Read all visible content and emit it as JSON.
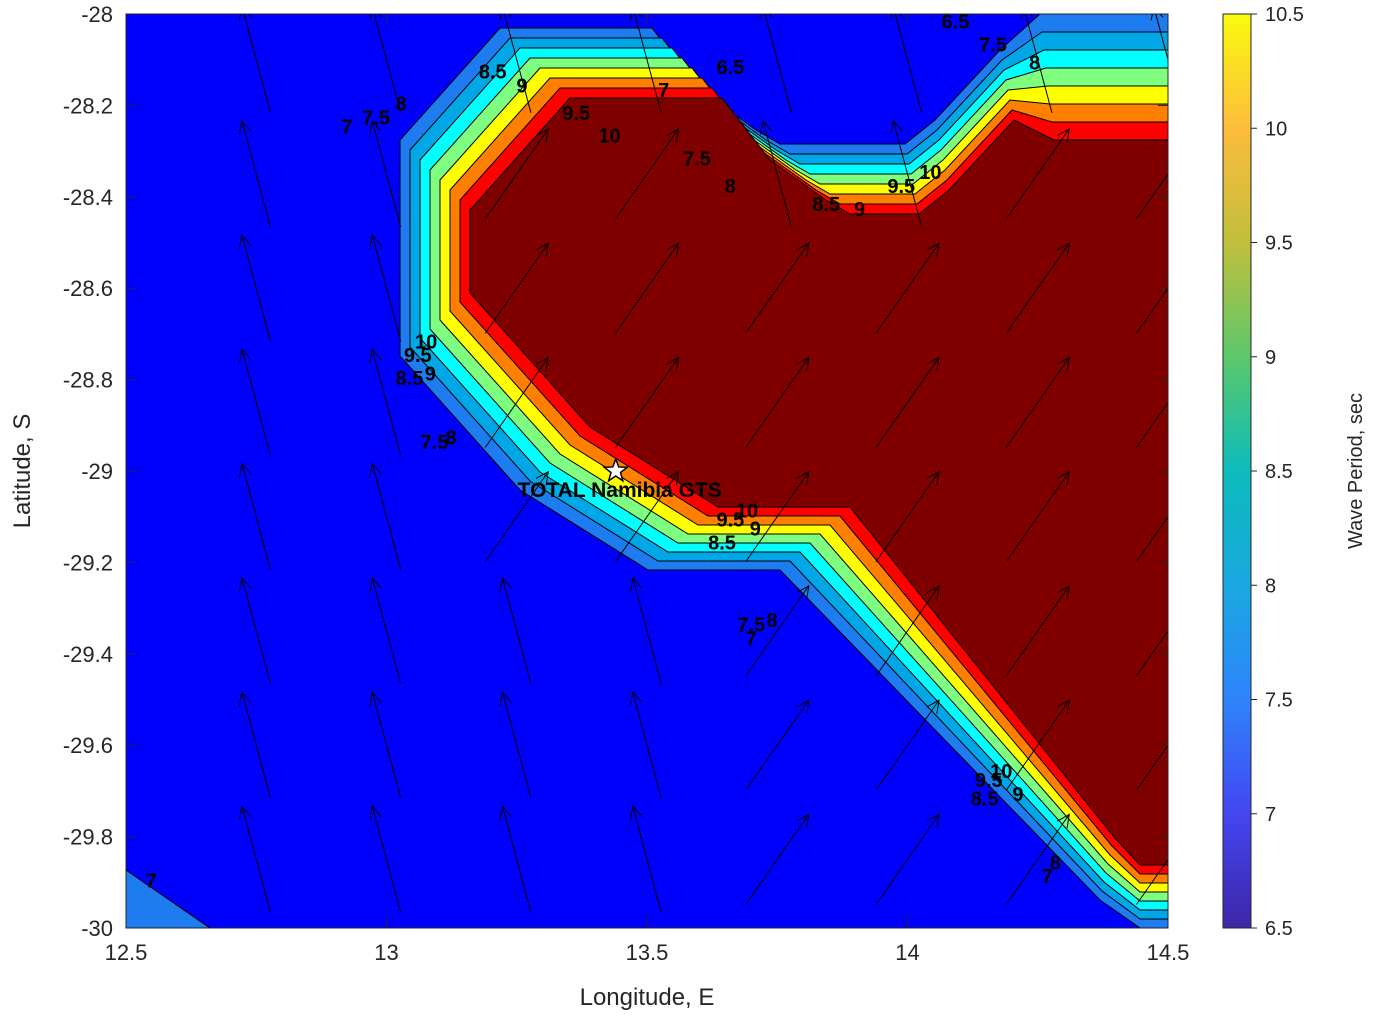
{
  "chart_data": {
    "type": "contour",
    "xlabel": "Longitude, E",
    "ylabel": "Latitude, S",
    "xlim": [
      12.5,
      14.5
    ],
    "ylim": [
      -30,
      -28
    ],
    "xticks": [
      12.5,
      13,
      13.5,
      14,
      14.5
    ],
    "xtick_labels": [
      "12.5",
      "13",
      "13.5",
      "14",
      "14.5"
    ],
    "yticks": [
      -28,
      -28.2,
      -28.4,
      -28.6,
      -28.8,
      -29,
      -29.2,
      -29.4,
      -29.6,
      -29.8,
      -30
    ],
    "ytick_labels": [
      "-28",
      "-28.2",
      "-28.4",
      "-28.6",
      "-28.8",
      "-29",
      "-29.2",
      "-29.4",
      "-29.6",
      "-29.8",
      "-30"
    ],
    "colorbar": {
      "label": "Wave Period, sec",
      "range": [
        6.5,
        10.5
      ],
      "ticks": [
        6.5,
        7,
        7.5,
        8,
        8.5,
        9,
        9.5,
        10,
        10.5
      ],
      "tick_labels": [
        "6.5",
        "7",
        "7.5",
        "8",
        "8.5",
        "9",
        "9.5",
        "10",
        "10.5"
      ]
    },
    "contour_levels": [
      6.5,
      7,
      7.5,
      8,
      8.5,
      9,
      9.5,
      10,
      10.5
    ],
    "level_colors": [
      "#0000ff",
      "#1c7cf0",
      "#00a7e6",
      "#00ffff",
      "#7fff7f",
      "#ffff00",
      "#ff8000",
      "#ff0000",
      "#800000"
    ],
    "region_max_period": 10.5,
    "background_period": 6.5,
    "contour_labels": [
      {
        "text": "7",
        "lon": 13.03,
        "lat": -28.25
      },
      {
        "text": "7.5",
        "lon": 13.1,
        "lat": -28.23
      },
      {
        "text": "8",
        "lon": 13.16,
        "lat": -28.2
      },
      {
        "text": "8.5",
        "lon": 13.38,
        "lat": -28.13
      },
      {
        "text": "9",
        "lon": 13.45,
        "lat": -28.16
      },
      {
        "text": "9.5",
        "lon": 13.58,
        "lat": -28.22
      },
      {
        "text": "10",
        "lon": 13.66,
        "lat": -28.27
      },
      {
        "text": "7",
        "lon": 13.79,
        "lat": -28.17
      },
      {
        "text": "6.5",
        "lon": 13.95,
        "lat": -28.12
      },
      {
        "text": "7.5",
        "lon": 13.87,
        "lat": -28.32
      },
      {
        "text": "8",
        "lon": 13.95,
        "lat": -28.38
      },
      {
        "text": "8.5",
        "lon": 14.18,
        "lat": -28.42
      },
      {
        "text": "9",
        "lon": 14.26,
        "lat": -28.43
      },
      {
        "text": "9.5",
        "lon": 14.36,
        "lat": -28.38
      },
      {
        "text": "10",
        "lon": 14.43,
        "lat": -28.35
      },
      {
        "text": "6.5",
        "lon": 14.49,
        "lat": -28.02
      },
      {
        "text": "7.5",
        "lon": 14.58,
        "lat": -28.07
      },
      {
        "text": "8",
        "lon": 14.68,
        "lat": -28.11
      },
      {
        "text": "10",
        "lon": 13.22,
        "lat": -28.72
      },
      {
        "text": "9.5",
        "lon": 13.2,
        "lat": -28.75
      },
      {
        "text": "9",
        "lon": 13.23,
        "lat": -28.79
      },
      {
        "text": "8.5",
        "lon": 13.18,
        "lat": -28.8
      },
      {
        "text": "8",
        "lon": 13.28,
        "lat": -28.93
      },
      {
        "text": "7.5",
        "lon": 13.24,
        "lat": -28.94
      },
      {
        "text": "10",
        "lon": 13.99,
        "lat": -29.09
      },
      {
        "text": "9.5",
        "lon": 13.95,
        "lat": -29.11
      },
      {
        "text": "9",
        "lon": 14.01,
        "lat": -29.13
      },
      {
        "text": "8.5",
        "lon": 13.93,
        "lat": -29.16
      },
      {
        "text": "8",
        "lon": 14.05,
        "lat": -29.33
      },
      {
        "text": "7.5",
        "lon": 14.0,
        "lat": -29.34
      },
      {
        "text": "7",
        "lon": 14.0,
        "lat": -29.37
      },
      {
        "text": "10",
        "lon": 14.6,
        "lat": -29.66
      },
      {
        "text": "9.5",
        "lon": 14.57,
        "lat": -29.68
      },
      {
        "text": "9",
        "lon": 14.64,
        "lat": -29.71
      },
      {
        "text": "8.5",
        "lon": 14.56,
        "lat": -29.72
      },
      {
        "text": "8",
        "lon": 14.73,
        "lat": -29.86
      },
      {
        "text": "7",
        "lon": 14.71,
        "lat": -29.89
      },
      {
        "text": "7",
        "lon": 12.56,
        "lat": -29.9
      }
    ],
    "annotations": [
      {
        "text": "TOTAL Namibia GTS",
        "lon": 13.44,
        "lat": -29.0,
        "marker": "star"
      }
    ],
    "vector_field": {
      "description": "wave direction arrows on regular grid",
      "lons": [
        12.75,
        13.0,
        13.25,
        13.5,
        13.75,
        14.0,
        14.25,
        14.5
      ],
      "lats": [
        -28.1,
        -28.35,
        -28.6,
        -28.85,
        -29.1,
        -29.35,
        -29.6,
        -29.85
      ],
      "offshore_direction": "north-northwest",
      "nearshore_direction": "north-northeast"
    }
  }
}
